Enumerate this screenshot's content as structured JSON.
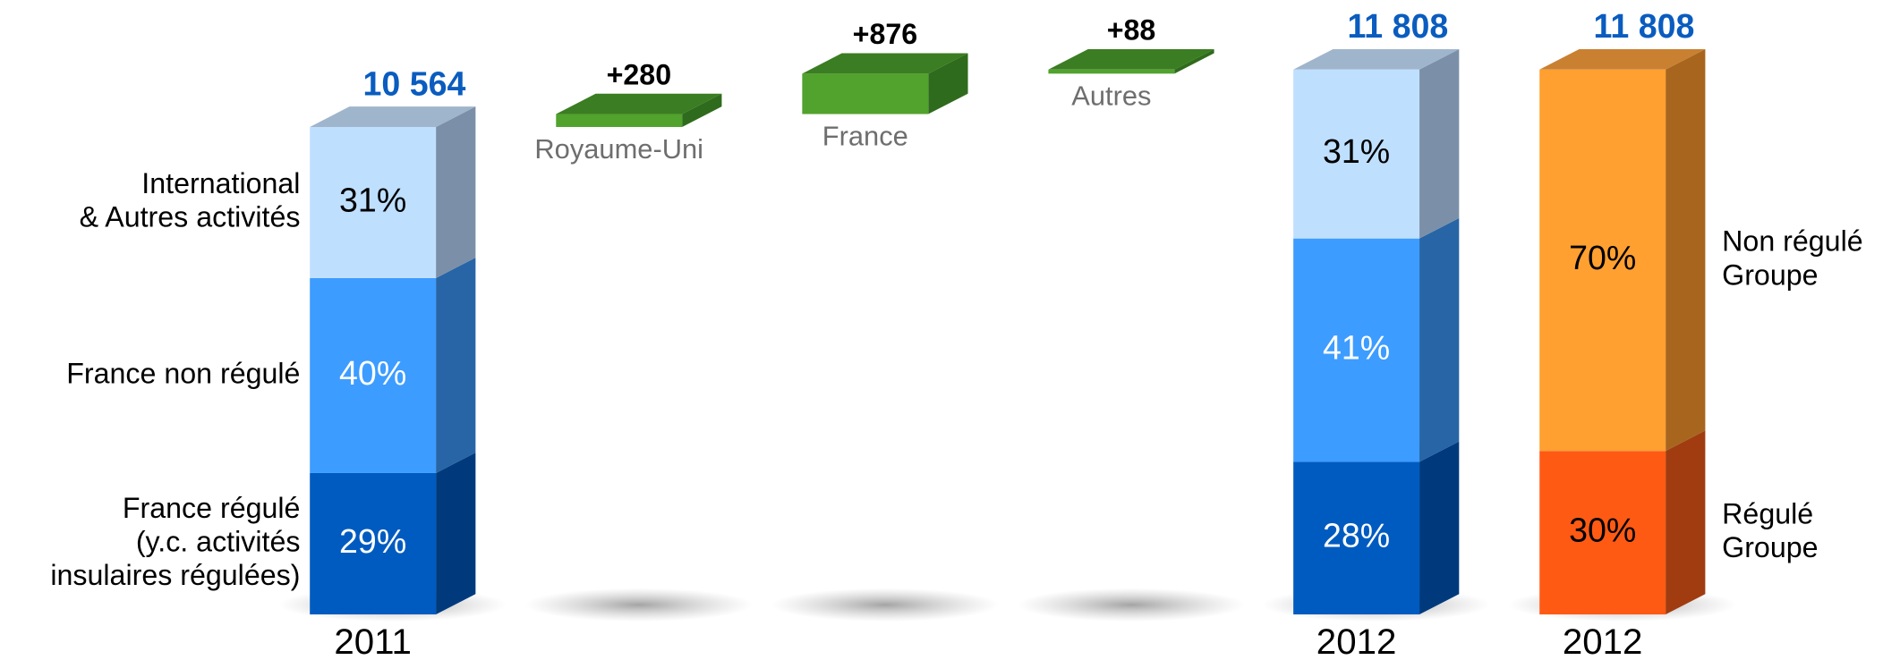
{
  "chart_data": {
    "type": "waterfall",
    "bars": [
      {
        "kind": "total",
        "category": "2011",
        "total": 10564,
        "total_label": "10 564",
        "label_side": "left",
        "segments": [
          {
            "value": 29,
            "value_label": "29%",
            "color": "#005bc0",
            "side_color": "#003a7d",
            "text_color": "#ffffff",
            "name_lines": [
              "France régulé",
              "(y.c. activités",
              "insulaires régulées)"
            ]
          },
          {
            "value": 40,
            "value_label": "40%",
            "color": "#3d9cff",
            "side_color": "#2765a6",
            "text_color": "#ffffff",
            "name_lines": [
              "France non régulé"
            ]
          },
          {
            "value": 31,
            "value_label": "31%",
            "color": "#bfdfff",
            "side_color": "#7b90a8",
            "top_color": "#9fb5cc",
            "text_color": "#000000",
            "name_lines": [
              "International",
              "& Autres activités"
            ]
          }
        ]
      },
      {
        "kind": "delta",
        "name": "Royaume-Uni",
        "value": 280,
        "value_label": "+280",
        "color": "#52a22e",
        "side_color": "#2f6b1c",
        "top_color": "#3b7d22"
      },
      {
        "kind": "delta",
        "name": "France",
        "value": 876,
        "value_label": "+876",
        "color": "#52a22e",
        "side_color": "#2f6b1c",
        "top_color": "#3b7d22"
      },
      {
        "kind": "delta",
        "name": "Autres",
        "value": 88,
        "value_label": "+88",
        "color": "#52a22e",
        "side_color": "#2f6b1c",
        "top_color": "#3b7d22"
      },
      {
        "kind": "total",
        "category": "2012",
        "total": 11808,
        "total_label": "11 808",
        "label_side": "none",
        "segments": [
          {
            "value": 28,
            "value_label": "28%",
            "color": "#005bc0",
            "side_color": "#003a7d",
            "text_color": "#ffffff"
          },
          {
            "value": 41,
            "value_label": "41%",
            "color": "#3d9cff",
            "side_color": "#2765a6",
            "text_color": "#ffffff"
          },
          {
            "value": 31,
            "value_label": "31%",
            "color": "#bfdfff",
            "side_color": "#7b90a8",
            "top_color": "#9fb5cc",
            "text_color": "#000000"
          }
        ]
      },
      {
        "kind": "total",
        "category": "2012",
        "total": 11808,
        "total_label": "11 808",
        "label_side": "right",
        "segments": [
          {
            "value": 30,
            "value_label": "30%",
            "color": "#ff5a14",
            "side_color": "#a03c10",
            "text_color": "#000000",
            "name_lines": [
              "Régulé",
              "Groupe"
            ]
          },
          {
            "value": 70,
            "value_label": "70%",
            "color": "#ffa030",
            "side_color": "#a8651e",
            "top_color": "#c98030",
            "text_color": "#000000",
            "name_lines": [
              "Non régulé",
              "Groupe"
            ]
          }
        ]
      }
    ]
  }
}
